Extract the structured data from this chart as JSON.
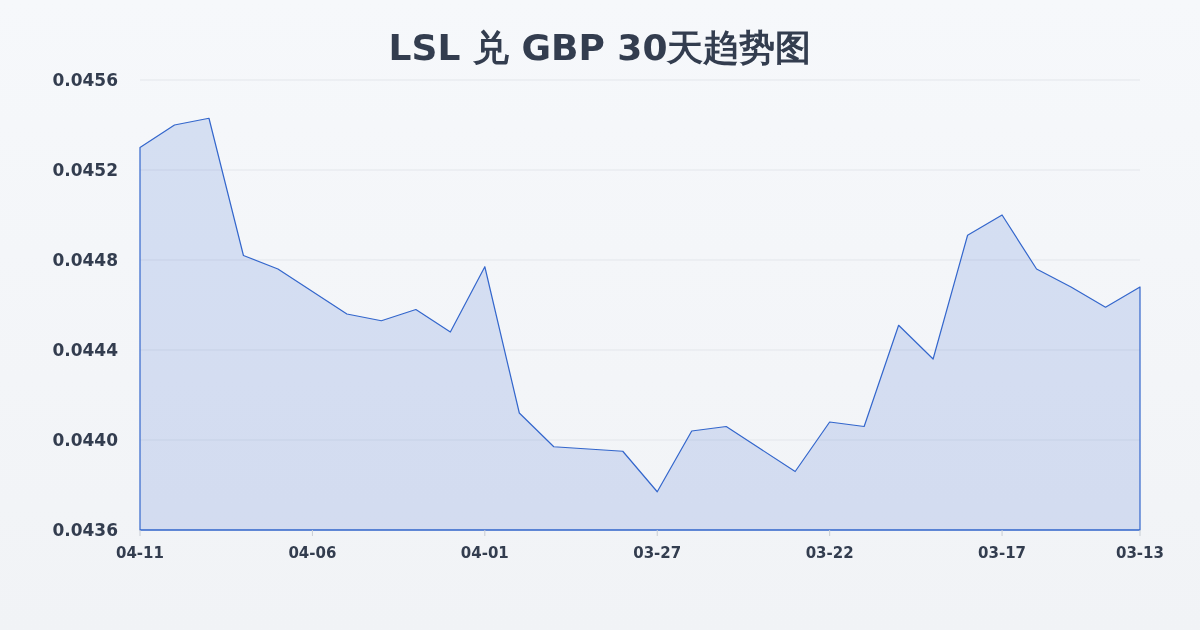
{
  "chart_data": {
    "type": "area",
    "title": "LSL 兑 GBP 30天趋势图",
    "categories": [
      "04-11",
      null,
      null,
      null,
      null,
      "04-06",
      null,
      null,
      null,
      null,
      "04-01",
      null,
      null,
      null,
      null,
      "03-27",
      null,
      null,
      null,
      null,
      "03-22",
      null,
      null,
      null,
      null,
      "03-17",
      null,
      null,
      null,
      "03-13"
    ],
    "color": "#3366cc",
    "values": [
      0.0453,
      0.0454,
      0.04543,
      0.04482,
      0.04476,
      0.04466,
      0.04456,
      0.04453,
      0.04458,
      0.04448,
      0.04477,
      0.04412,
      0.04397,
      0.04396,
      0.04395,
      0.04377,
      0.04404,
      0.04406,
      0.04396,
      0.04386,
      0.04408,
      0.04406,
      0.04451,
      0.04436,
      0.04491,
      0.045,
      0.04476,
      0.04468,
      0.04459,
      0.04468
    ],
    "ylim": [
      0.0436,
      0.0456
    ],
    "yticks": [
      0.0436,
      {
        "value": 0.044,
        "label": "0.0440"
      },
      0.0444,
      0.0448,
      0.0452,
      0.0456
    ],
    "grid": "y"
  }
}
